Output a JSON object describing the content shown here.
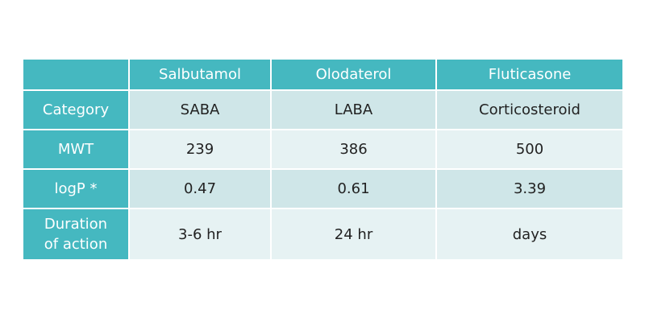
{
  "table": {
    "columns": [
      "Salbutamol",
      "Olodaterol",
      "Fluticasone"
    ],
    "rows": [
      {
        "label": "Category",
        "cells": [
          "SABA",
          "LABA",
          "Corticosteroid"
        ]
      },
      {
        "label": "MWT",
        "cells": [
          "239",
          "386",
          "500"
        ]
      },
      {
        "label": "logP *",
        "cells": [
          "0.47",
          "0.61",
          "3.39"
        ]
      },
      {
        "label": "Duration of action",
        "cells": [
          "3-6 hr",
          "24 hr",
          "days"
        ]
      }
    ]
  }
}
